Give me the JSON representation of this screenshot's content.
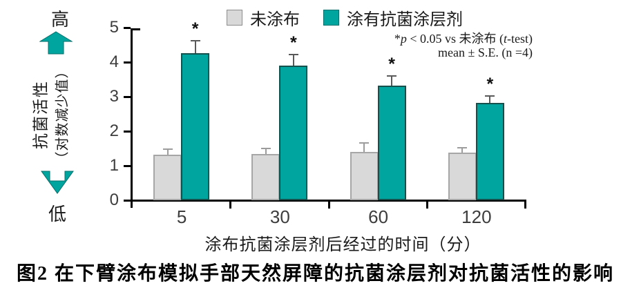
{
  "left_axis": {
    "high": "高",
    "low": "低",
    "label_line1": "抗菌活性",
    "label_line2": "（对数减少值）",
    "arrow_color": "#00a5a0",
    "arrow_border": "#066e6a"
  },
  "legend": [
    {
      "label": "未涂布",
      "color": "#d9d9d9",
      "border": "#8c8c8c"
    },
    {
      "label": "涂有抗菌涂层剂",
      "color": "#00a5a0",
      "border": "#066e6a"
    }
  ],
  "annotation": {
    "line1_star": "*",
    "line1_p": "p",
    "line1_mid": " < 0.05 vs 未涂布 (",
    "line1_t": "t",
    "line1_end": "-test)",
    "line2": "mean ± S.E. (n =4)"
  },
  "chart_data": {
    "type": "bar",
    "categories": [
      "5",
      "30",
      "60",
      "120"
    ],
    "series": [
      {
        "key": "uncoated",
        "name": "未涂布",
        "color": "#d9d9d9",
        "border": "#a6a6a6",
        "error_color": "#9c9c9c",
        "values": [
          1.33,
          1.35,
          1.41,
          1.38
        ],
        "errors": [
          0.17,
          0.17,
          0.28,
          0.17
        ],
        "significant": [
          false,
          false,
          false,
          false
        ]
      },
      {
        "key": "coated",
        "name": "涂有抗菌涂层剂",
        "color": "#00a5a0",
        "border": "#16504d",
        "error_color": "#595959",
        "values": [
          4.27,
          3.9,
          3.33,
          2.83
        ],
        "errors": [
          0.38,
          0.35,
          0.3,
          0.21
        ],
        "significant": [
          true,
          true,
          true,
          true
        ]
      }
    ],
    "ylim": [
      0,
      5
    ],
    "yticks": [
      0,
      1,
      2,
      3,
      4,
      5
    ],
    "xlabel": "涂布抗菌涂层剂后经过的时间（分）",
    "ylabel": "抗菌活性（对数减少值）",
    "significance_marker": "*",
    "legend_position": "top",
    "grid": "off"
  },
  "caption": "图2 在下臂涂布模拟手部天然屏障的抗菌涂层剂对抗菌活性的影响"
}
